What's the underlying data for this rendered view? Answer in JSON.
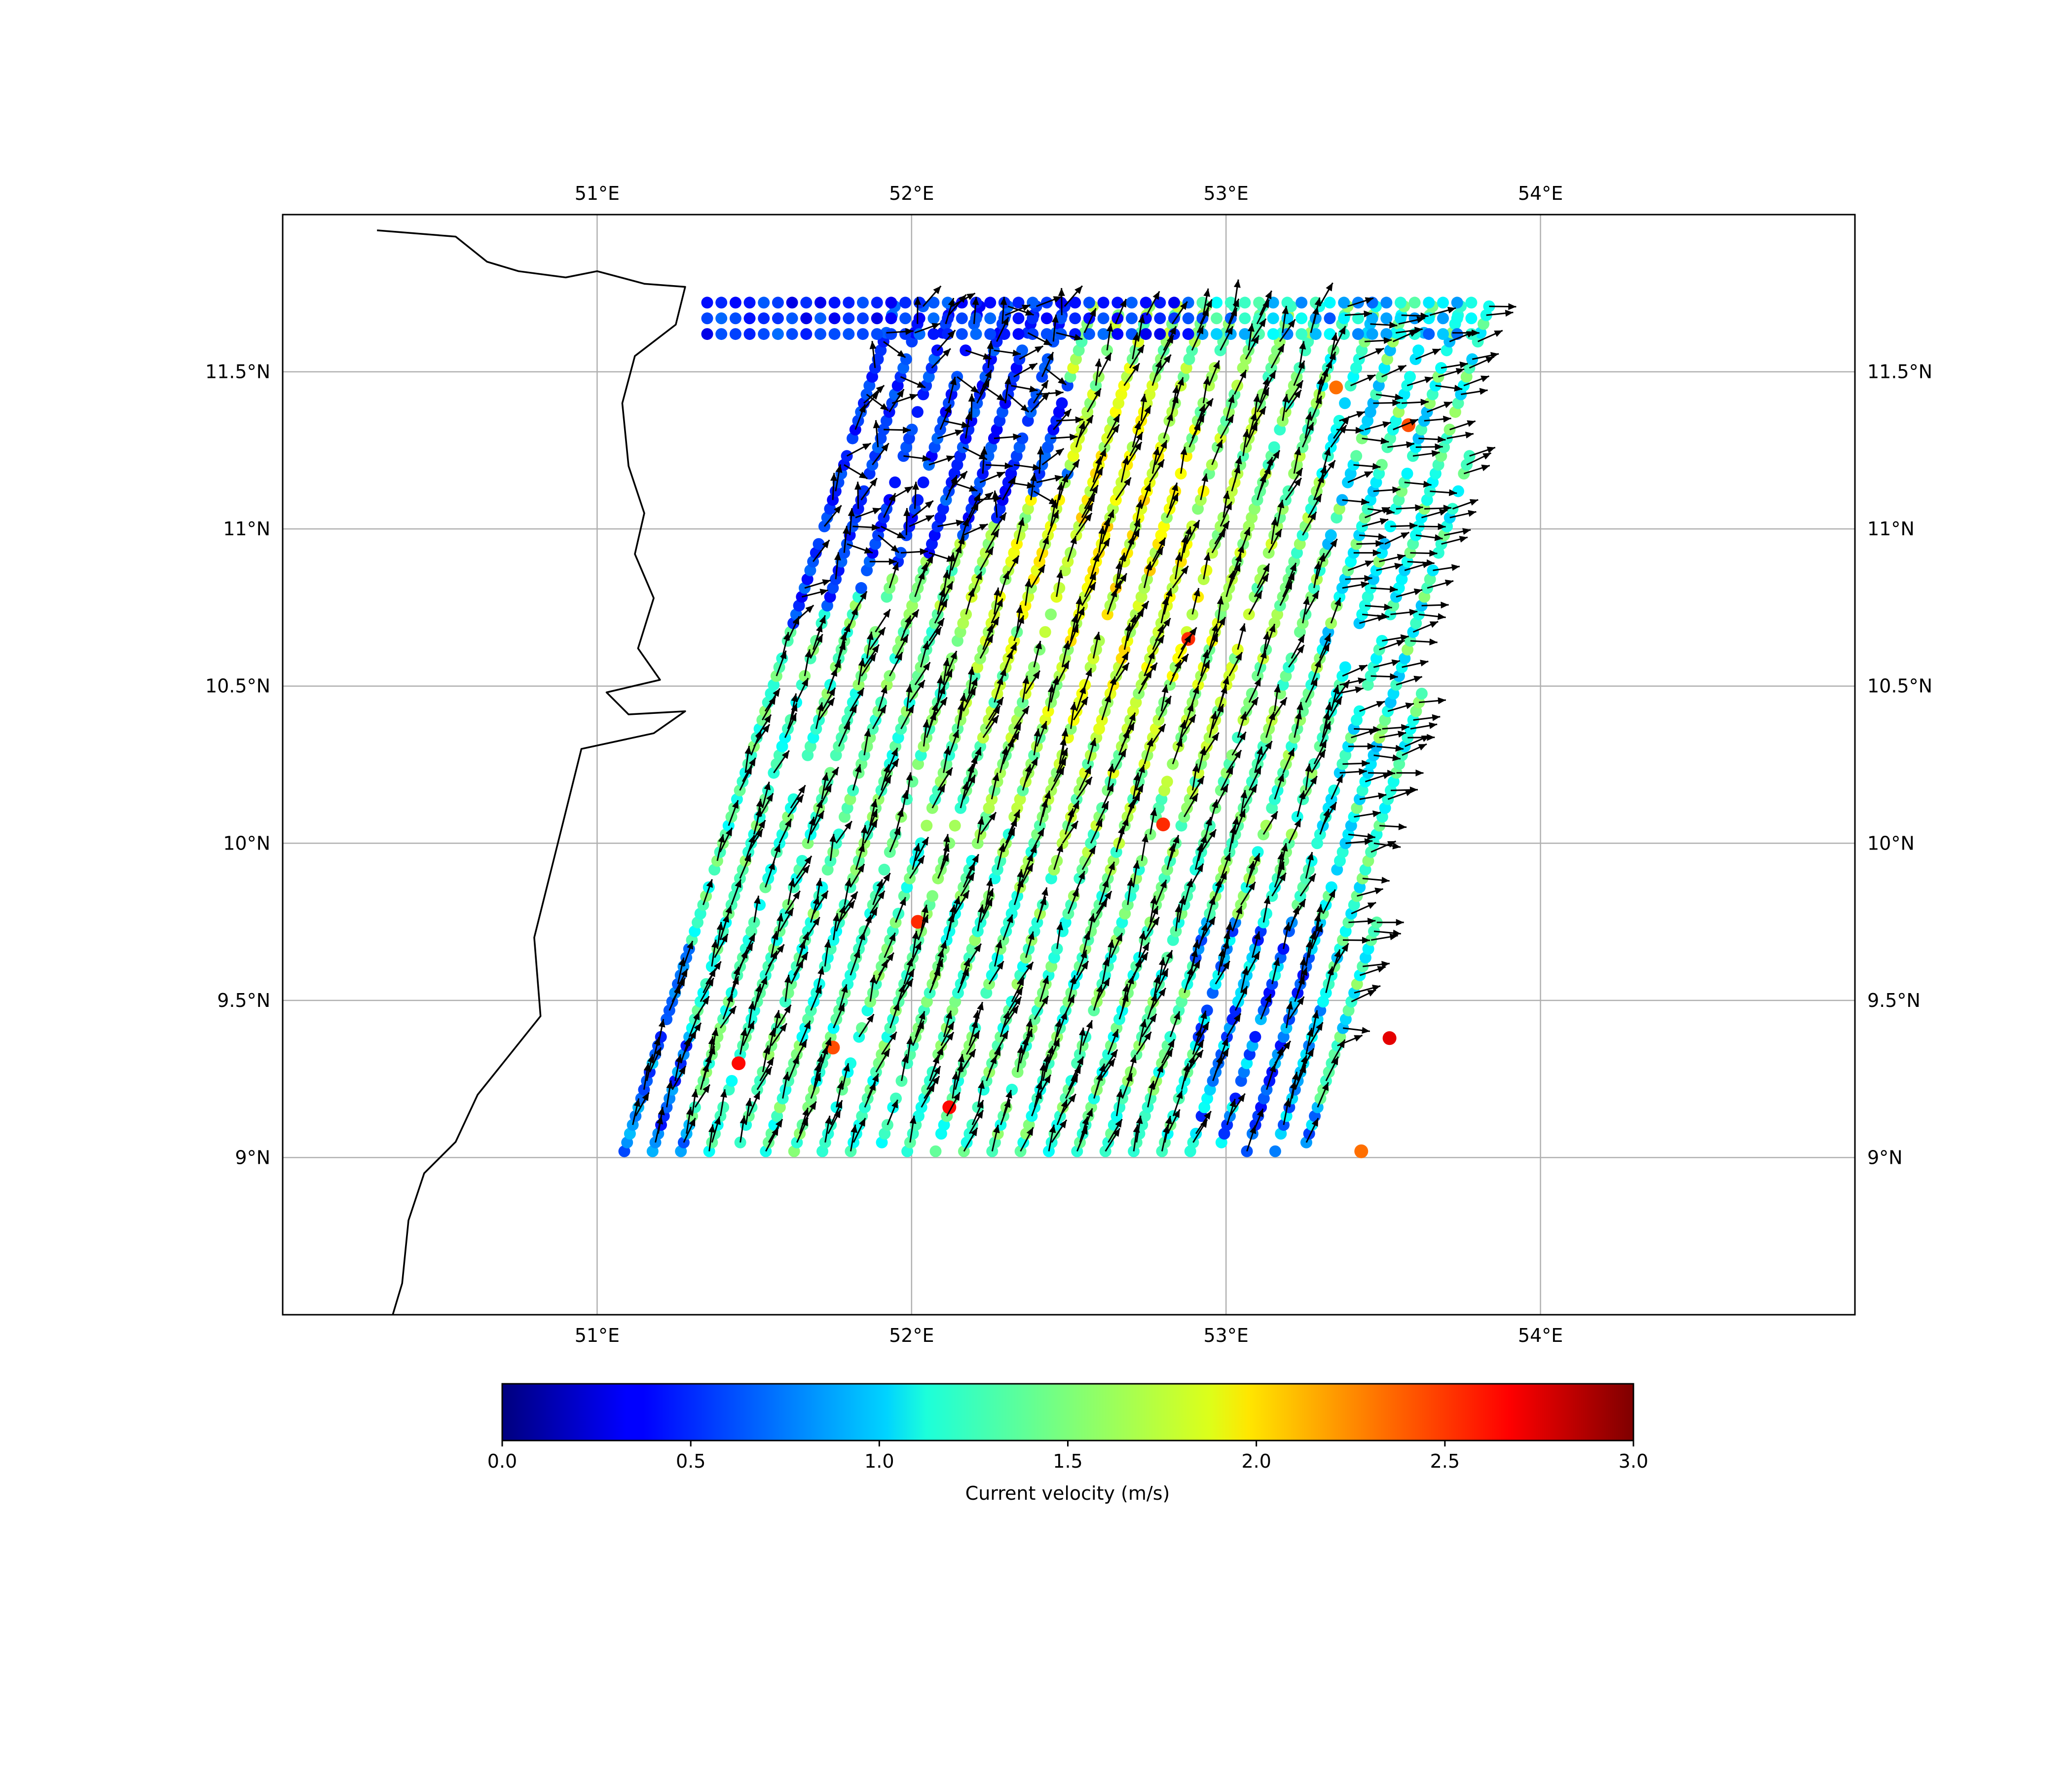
{
  "chart_data": {
    "type": "scatter",
    "map_extent": {
      "lon": [
        50.0,
        55.0
      ],
      "lat": [
        8.5,
        12.0
      ]
    },
    "gridlines": true,
    "x_ticks": [
      {
        "value": 51,
        "label": "51°E"
      },
      {
        "value": 52,
        "label": "52°E"
      },
      {
        "value": 53,
        "label": "53°E"
      },
      {
        "value": 54,
        "label": "54°E"
      }
    ],
    "y_ticks": [
      {
        "value": 9.0,
        "label": "9°N"
      },
      {
        "value": 9.5,
        "label": "9.5°N"
      },
      {
        "value": 10.0,
        "label": "10°N"
      },
      {
        "value": 10.5,
        "label": "10.5°N"
      },
      {
        "value": 11.0,
        "label": "11°N"
      },
      {
        "value": 11.5,
        "label": "11.5°N"
      }
    ],
    "coastline": [
      [
        50.3,
        11.95
      ],
      [
        50.55,
        11.93
      ],
      [
        50.65,
        11.85
      ],
      [
        50.75,
        11.82
      ],
      [
        50.9,
        11.8
      ],
      [
        51.0,
        11.82
      ],
      [
        51.15,
        11.78
      ],
      [
        51.28,
        11.77
      ],
      [
        51.25,
        11.65
      ],
      [
        51.12,
        11.55
      ],
      [
        51.08,
        11.4
      ],
      [
        51.1,
        11.2
      ],
      [
        51.15,
        11.05
      ],
      [
        51.12,
        10.92
      ],
      [
        51.18,
        10.78
      ],
      [
        51.13,
        10.62
      ],
      [
        51.2,
        10.52
      ],
      [
        51.03,
        10.48
      ],
      [
        51.1,
        10.41
      ],
      [
        51.28,
        10.42
      ],
      [
        51.18,
        10.35
      ],
      [
        50.95,
        10.3
      ],
      [
        50.9,
        10.1
      ],
      [
        50.85,
        9.9
      ],
      [
        50.8,
        9.7
      ],
      [
        50.82,
        9.45
      ],
      [
        50.7,
        9.3
      ],
      [
        50.62,
        9.2
      ],
      [
        50.55,
        9.05
      ],
      [
        50.45,
        8.95
      ],
      [
        50.4,
        8.8
      ],
      [
        50.38,
        8.6
      ],
      [
        50.35,
        8.5
      ]
    ],
    "current_field_description": [
      {
        "region": "northwest (51.3–52.5°E, 10.6–11.75°N)",
        "speed_ms": 0.3,
        "direction": "variable, mostly eastward"
      },
      {
        "region": "coastal strip (51.05–51.3°E, 9.1–10.4°N)",
        "speed_ms": 0.6,
        "direction": "northward / northeastward"
      },
      {
        "region": "central band (51.5–53.0°E, 9.0–11.5°N)",
        "speed_ms": 1.7,
        "direction": "north-northeastward"
      },
      {
        "region": "core maximum (52.3–53.0°E, 10.6–11.3°N)",
        "speed_ms": 2.1,
        "direction": "north-northeastward"
      },
      {
        "region": "eastern edge (53.3–53.85°E, 9.6–11.7°N)",
        "speed_ms": 1.1,
        "direction": "eastward"
      },
      {
        "region": "southeast (52.9–53.4°E, 9.0–9.7°N)",
        "speed_ms": 0.6,
        "direction": "variable"
      }
    ],
    "hotspots": [
      {
        "lon": 51.45,
        "lat": 9.3,
        "speed": 2.6
      },
      {
        "lon": 51.75,
        "lat": 9.35,
        "speed": 2.4
      },
      {
        "lon": 52.02,
        "lat": 9.75,
        "speed": 2.5
      },
      {
        "lon": 52.12,
        "lat": 9.16,
        "speed": 2.6
      },
      {
        "lon": 52.8,
        "lat": 10.06,
        "speed": 2.5
      },
      {
        "lon": 52.88,
        "lat": 10.65,
        "speed": 2.5
      },
      {
        "lon": 53.35,
        "lat": 11.45,
        "speed": 2.3
      },
      {
        "lon": 53.58,
        "lat": 11.33,
        "speed": 2.4
      },
      {
        "lon": 53.52,
        "lat": 9.38,
        "speed": 2.7
      },
      {
        "lon": 53.43,
        "lat": 9.02,
        "speed": 2.3
      }
    ],
    "colorbar": {
      "colormap": "jet",
      "range": [
        0.0,
        3.0
      ],
      "ticks": [
        {
          "value": 0.0,
          "label": "0.0"
        },
        {
          "value": 0.5,
          "label": "0.5"
        },
        {
          "value": 1.0,
          "label": "1.0"
        },
        {
          "value": 1.5,
          "label": "1.5"
        },
        {
          "value": 2.0,
          "label": "2.0"
        },
        {
          "value": 2.5,
          "label": "2.5"
        },
        {
          "value": 3.0,
          "label": "3.0"
        }
      ],
      "label": "Current velocity (m/s)"
    }
  }
}
